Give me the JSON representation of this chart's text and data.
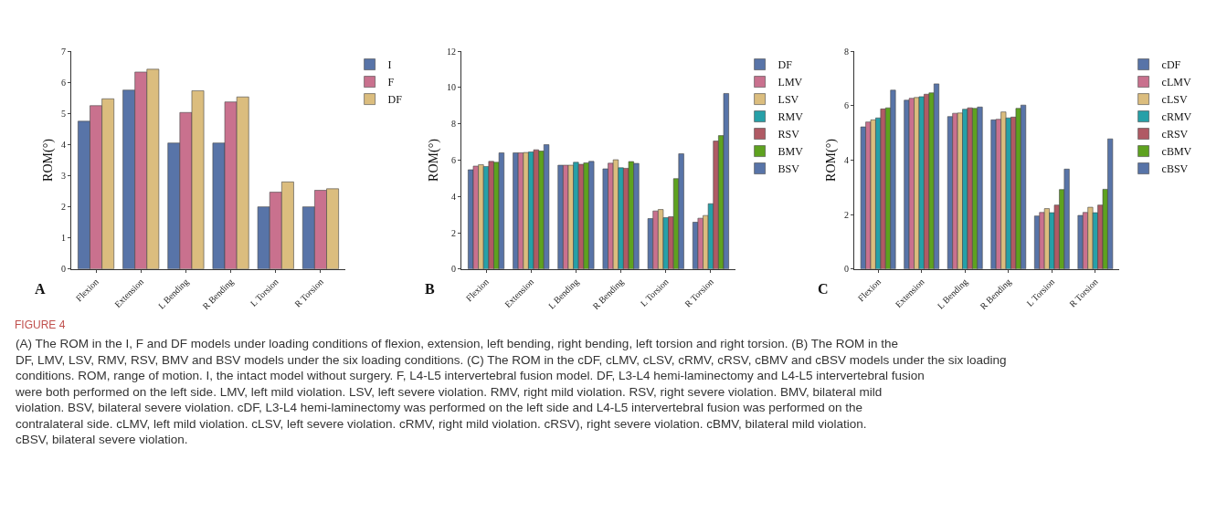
{
  "chart_data": [
    {
      "type": "bar",
      "title": "A",
      "ylabel": "ROM(°)",
      "categories": [
        "Flexion",
        "Extension",
        "L Bending",
        "R Bending",
        "L Torsion",
        "R Torsion"
      ],
      "series": [
        {
          "name": "I",
          "color": "#5874a8",
          "values": [
            4.75,
            5.75,
            4.05,
            4.05,
            2.0,
            2.0
          ]
        },
        {
          "name": "F",
          "color": "#c9718e",
          "values": [
            5.25,
            6.33,
            5.03,
            5.37,
            2.47,
            2.53
          ]
        },
        {
          "name": "DF",
          "color": "#dbbd7e",
          "values": [
            5.47,
            6.42,
            5.73,
            5.53,
            2.8,
            2.58
          ]
        }
      ],
      "ylim": [
        0,
        7
      ],
      "yticks": [
        0,
        1,
        2,
        3,
        4,
        5,
        6,
        7
      ],
      "legend": "top right",
      "annotations": [
        "FIGURE 4",
        "(A) The ROM in the I, F and DF models under loading conditions of flexion, extension, left bending, right bending, left torsion and right torsion. (B) The ROM in the DF, LMV, LSV, RMV, RSV, BMV and BSV models under the six loading conditions. (C) The ROM in the cDF, cLMV, cLSV, cRMV, cRSV, cBMV and cBSV models under the six loading conditions. ROM, range of motion. I, the intact model without surgery. F, L4-L5 intervertebral fusion model. DF, L3-L4 hemi-laminectomy and L4-L5 intervertebral fusion were both performed on the left side. LMV, left mild violation. LSV, left severe violation. RMV, right mild violation. RSV, right severe violation. BMV, bilateral mild violation. BSV, bilateral severe violation. cDF, L3-L4 hemi-laminectomy was performed on the left side and L4-L5 intervertebral fusion was performed on the contralateral side. cLMV, left mild violation. cLSV, left severe violation. cRMV, right mild violation. cRSV), right severe violation. cBMV, bilateral mild violation. cBSV, bilateral severe violation."
      ]
    },
    {
      "type": "bar",
      "title": "B",
      "ylabel": "ROM(°)",
      "categories": [
        "Flexion",
        "Extension",
        "L Bending",
        "R Bending",
        "L Torsion",
        "R Torsion"
      ],
      "series": [
        {
          "name": "DF",
          "color": "#5874a8",
          "values": [
            5.47,
            6.4,
            5.72,
            5.52,
            2.78,
            2.58
          ]
        },
        {
          "name": "LMV",
          "color": "#c9718e",
          "values": [
            5.67,
            6.4,
            5.72,
            5.83,
            3.2,
            2.8
          ]
        },
        {
          "name": "LSV",
          "color": "#dbbd7e",
          "values": [
            5.75,
            6.42,
            5.72,
            6.02,
            3.28,
            2.95
          ]
        },
        {
          "name": "RMV",
          "color": "#26a0a8",
          "values": [
            5.65,
            6.45,
            5.88,
            5.58,
            2.83,
            3.6
          ]
        },
        {
          "name": "RSV",
          "color": "#b05a64",
          "values": [
            5.93,
            6.57,
            5.77,
            5.55,
            2.88,
            7.05
          ]
        },
        {
          "name": "BMV",
          "color": "#5ea21f",
          "values": [
            5.88,
            6.5,
            5.85,
            5.92,
            4.98,
            7.35
          ]
        },
        {
          "name": "BSV",
          "color": "#5874a8",
          "values": [
            6.4,
            6.85,
            5.93,
            5.82,
            6.35,
            9.67
          ]
        }
      ],
      "ylim": [
        0,
        12
      ],
      "yticks": [
        0,
        2,
        4,
        6,
        8,
        10,
        12
      ],
      "legend": "top right"
    },
    {
      "type": "bar",
      "title": "C",
      "ylabel": "ROM(°)",
      "categories": [
        "Flexion",
        "Extension",
        "L Bending",
        "R Bending",
        "L Torsion",
        "R Torsion"
      ],
      "series": [
        {
          "name": "cDF",
          "color": "#5874a8",
          "values": [
            5.22,
            6.2,
            5.6,
            5.48,
            1.95,
            1.97
          ]
        },
        {
          "name": "cLMV",
          "color": "#c9718e",
          "values": [
            5.4,
            6.27,
            5.72,
            5.5,
            2.08,
            2.08
          ]
        },
        {
          "name": "cLSV",
          "color": "#dbbd7e",
          "values": [
            5.48,
            6.3,
            5.73,
            5.77,
            2.22,
            2.27
          ]
        },
        {
          "name": "cRMV",
          "color": "#26a0a8",
          "values": [
            5.55,
            6.33,
            5.87,
            5.55,
            2.07,
            2.07
          ]
        },
        {
          "name": "cRSV",
          "color": "#b05a64",
          "values": [
            5.88,
            6.42,
            5.92,
            5.58,
            2.35,
            2.35
          ]
        },
        {
          "name": "cBMV",
          "color": "#5ea21f",
          "values": [
            5.92,
            6.47,
            5.9,
            5.9,
            2.92,
            2.93
          ]
        },
        {
          "name": "cBSV",
          "color": "#5874a8",
          "values": [
            6.57,
            6.8,
            5.95,
            6.02,
            3.67,
            4.78
          ]
        }
      ],
      "ylim": [
        0,
        8
      ],
      "yticks": [
        0,
        2,
        4,
        6,
        8
      ],
      "legend": "top right"
    }
  ]
}
